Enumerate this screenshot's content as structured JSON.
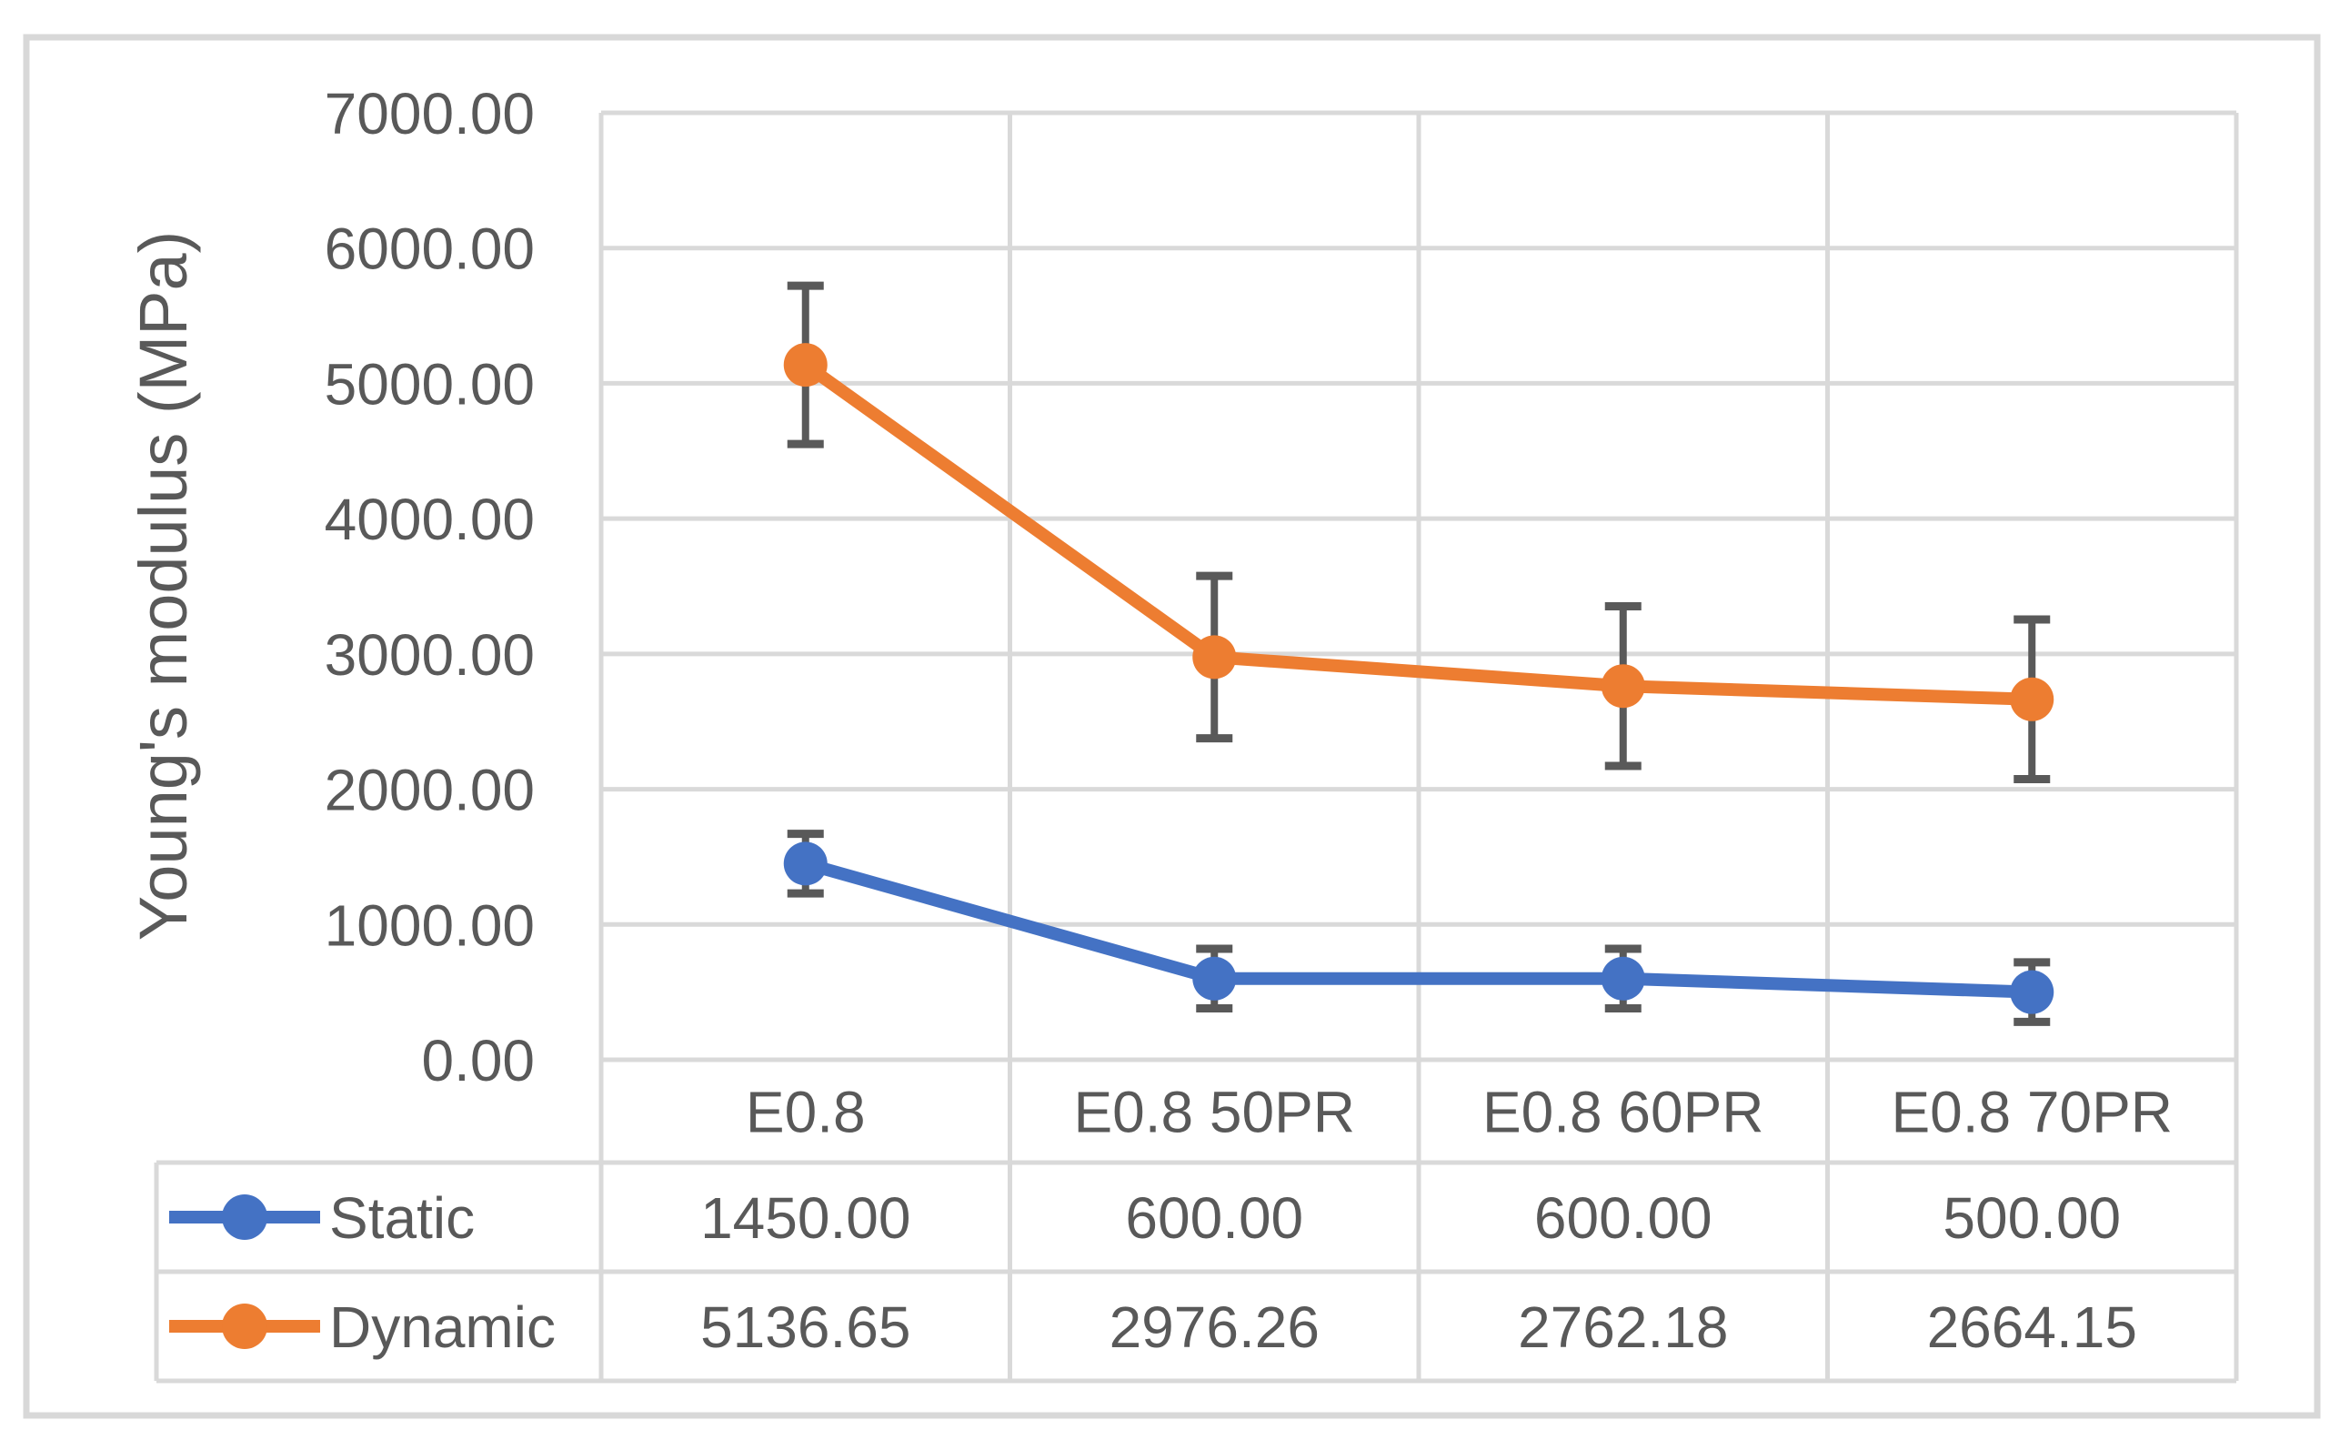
{
  "chart_data": {
    "type": "line",
    "title": "",
    "xlabel": "",
    "ylabel": "Young's modulus (MPa)",
    "categories": [
      "E0.8",
      "E0.8 50PR",
      "E0.8 60PR",
      "E0.8 70PR"
    ],
    "series": [
      {
        "name": "Static",
        "color": "#4472C4",
        "values": [
          1450.0,
          600.0,
          600.0,
          500.0
        ],
        "error_bars": [
          220,
          220,
          220,
          220
        ]
      },
      {
        "name": "Dynamic",
        "color": "#ED7D31",
        "values": [
          5136.65,
          2976.26,
          2762.18,
          2664.15
        ],
        "error_bars": [
          585,
          600,
          590,
          590
        ]
      }
    ],
    "ylim": [
      0,
      7000
    ],
    "y_tick_step": 1000,
    "y_tick_labels": [
      "0.00",
      "1000.00",
      "2000.00",
      "3000.00",
      "4000.00",
      "5000.00",
      "6000.00",
      "7000.00"
    ],
    "grid": true,
    "legend_position": "data-table-left",
    "data_table": {
      "rows": [
        {
          "label": "Static",
          "values": [
            "1450.00",
            "600.00",
            "600.00",
            "500.00"
          ]
        },
        {
          "label": "Dynamic",
          "values": [
            "5136.65",
            "2976.26",
            "2762.18",
            "2664.15"
          ]
        }
      ]
    },
    "colors": {
      "error_bar": "#595959",
      "gridline": "#D9D9D9",
      "frame": "#D8D8D8",
      "text": "#595959"
    }
  }
}
